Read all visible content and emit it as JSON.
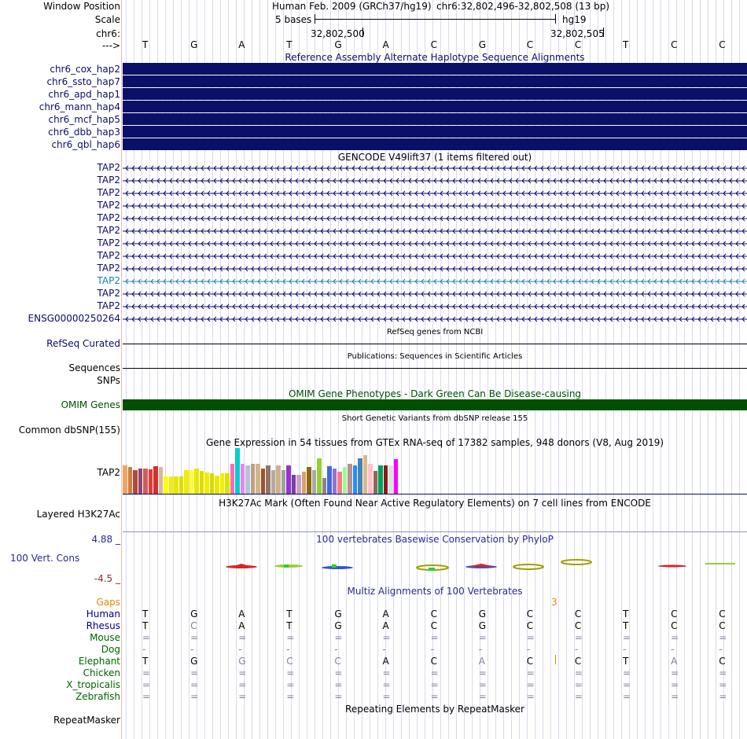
{
  "header": {
    "window_position_label": "Window Position",
    "scale_label": "Scale",
    "chrom_label": "chr6:",
    "arrow_label": "--->",
    "assembly": "Human Feb. 2009 (GRCh37/hg19)",
    "position": "chr6:32,802,496-32,802,508 (13 bp)",
    "scale_text": "5 bases",
    "db": "hg19",
    "tick1": "32,802,500",
    "tick2": "32,802,505"
  },
  "bases": [
    "T",
    "G",
    "A",
    "T",
    "G",
    "A",
    "C",
    "G",
    "C",
    "C",
    "T",
    "C",
    "C"
  ],
  "alt_haplotypes": {
    "title": "Reference Assembly Alternate Haplotype Sequence Alignments",
    "color": "#0a1068",
    "items": [
      "chr6_cox_hap2",
      "chr6_ssto_hap7",
      "chr6_apd_hap1",
      "chr6_mann_hap4",
      "chr6_mcf_hap5",
      "chr6_dbb_hap3",
      "chr6_qbl_hap6"
    ]
  },
  "gencode": {
    "title": "GENCODE V49lift37 (1 items filtered out)",
    "color": "#0b0b6e",
    "highlight_color": "#1d7fb8",
    "items": [
      {
        "label": "TAP2",
        "highlight": false
      },
      {
        "label": "TAP2",
        "highlight": false
      },
      {
        "label": "TAP2",
        "highlight": false
      },
      {
        "label": "TAP2",
        "highlight": false
      },
      {
        "label": "TAP2",
        "highlight": false
      },
      {
        "label": "TAP2",
        "highlight": false
      },
      {
        "label": "TAP2",
        "highlight": false
      },
      {
        "label": "TAP2",
        "highlight": false
      },
      {
        "label": "TAP2",
        "highlight": false
      },
      {
        "label": "TAP2",
        "highlight": true
      },
      {
        "label": "TAP2",
        "highlight": false
      },
      {
        "label": "TAP2",
        "highlight": false
      },
      {
        "label": "ENSG00000250264",
        "highlight": false
      }
    ]
  },
  "refseq": {
    "label": "RefSeq Curated",
    "title": "RefSeq genes from NCBI"
  },
  "pubs": {
    "label": "Sequences",
    "title": "Publications: Sequences in Scientific Articles"
  },
  "snps_label": "SNPs",
  "omim": {
    "title": "OMIM Gene Phenotypes - Dark Green Can Be Disease-causing",
    "label": "OMIM Genes",
    "color": "#005000"
  },
  "dbsnp": {
    "title": "Short Genetic Variants from dbSNP release 155",
    "label": "Common dbSNP(155)"
  },
  "gtex": {
    "title": "Gene Expression in 54 tissues from GTEx RNA-seq of 17382 samples, 948 donors (V8, Aug 2019)",
    "label": "TAP2",
    "values": [
      0.62,
      0.58,
      0.52,
      0.55,
      0.55,
      0.53,
      0.6,
      0.58,
      0.38,
      0.38,
      0.38,
      0.38,
      0.52,
      0.52,
      0.55,
      0.5,
      0.47,
      0.45,
      0.4,
      0.45,
      0.45,
      0.65,
      1.0,
      0.65,
      0.62,
      0.65,
      0.65,
      0.56,
      0.62,
      0.52,
      0.62,
      0.52,
      0.62,
      0.42,
      0.42,
      0.48,
      0.58,
      0.52,
      0.78,
      0.35,
      0.6,
      0.55,
      0.48,
      0.58,
      0.65,
      0.62,
      0.78,
      0.85,
      0.66,
      0.5,
      0.62,
      0.62,
      0.62,
      0.75
    ],
    "colors": [
      "#f4a460",
      "#cd7f3f",
      "#b5473c",
      "#8b4a6b",
      "#cd5c5c",
      "#e53935",
      "#d32f2f",
      "#d7b899",
      "#ffff00",
      "#eeee00",
      "#e6e600",
      "#dddd00",
      "#eeee00",
      "#ffff33",
      "#e6e600",
      "#dddd00",
      "#eeee00",
      "#d9d900",
      "#e8e800",
      "#f0f000",
      "#e0e000",
      "#ff69b4",
      "#00ced1",
      "#ee82ee",
      "#b0c4de",
      "#c0a080",
      "#d2b48c",
      "#a0522d",
      "#8b7765",
      "#b8a99a",
      "#cdb38b",
      "#a0a0a0",
      "#9932cc",
      "#7b3f9d",
      "#c8a2c8",
      "#d4a373",
      "#8b6914",
      "#a9a9a9",
      "#9acd32",
      "#8b8682",
      "#4169e1",
      "#9370db",
      "#f08080",
      "#98fb98",
      "#bc8f8f",
      "#1e90ff",
      "#4682b4",
      "#deb887",
      "#ffc0cb",
      "#8b6c4e",
      "#00a060",
      "#8b1a1a",
      "#e0e0e0",
      "#ff00ff"
    ]
  },
  "h3k27ac": {
    "title": "H3K27Ac Mark (Often Found Near Active Regulatory Elements) on 7 cell lines from ENCODE",
    "label": "Layered H3K27Ac"
  },
  "phylop": {
    "title": "100 vertebrates Basewise Conservation by PhyloP",
    "label": "100 Vert. Cons",
    "max": "4.88 _",
    "min": "-4.5 _"
  },
  "multiz": {
    "title": "Multiz Alignments of 100 Vertebrates",
    "gaps_label": "Gaps",
    "gaps_value": "3",
    "species": [
      {
        "name": "Human",
        "color": "#000080",
        "bases": [
          "T",
          "G",
          "A",
          "T",
          "G",
          "A",
          "C",
          "G",
          "C",
          "C",
          "T",
          "C",
          "C"
        ]
      },
      {
        "name": "Rhesus",
        "color": "#000080",
        "bases": [
          "T",
          "C",
          "A",
          "T",
          "G",
          "A",
          "C",
          "G",
          "C",
          "C",
          "T",
          "C",
          "C"
        ]
      },
      {
        "name": "Mouse",
        "color": "#006400",
        "bases": [
          "=",
          "=",
          "=",
          "=",
          "=",
          "=",
          "=",
          "=",
          "=",
          "=",
          "=",
          "=",
          "="
        ]
      },
      {
        "name": "Dog",
        "color": "#006400",
        "bases": [
          "-",
          "-",
          "-",
          "-",
          "-",
          "-",
          "-",
          "-",
          "-",
          "-",
          "-",
          "-",
          "-"
        ]
      },
      {
        "name": "Elephant",
        "color": "#006400",
        "bases": [
          "T",
          "G",
          "G",
          "C",
          "C",
          "A",
          "C",
          "A",
          "C",
          "C",
          "T",
          "A",
          "C"
        ]
      },
      {
        "name": "Chicken",
        "color": "#006400",
        "bases": [
          "=",
          "=",
          "=",
          "=",
          "=",
          "=",
          "=",
          "=",
          "=",
          "=",
          "=",
          "=",
          "="
        ]
      },
      {
        "name": "X_tropicalis",
        "color": "#006400",
        "bases": [
          "=",
          "=",
          "=",
          "=",
          "=",
          "=",
          "=",
          "=",
          "=",
          "=",
          "=",
          "=",
          "="
        ]
      },
      {
        "name": "Zebrafish",
        "color": "#006400",
        "bases": [
          "=",
          "=",
          "=",
          "=",
          "=",
          "=",
          "=",
          "=",
          "=",
          "=",
          "=",
          "=",
          "="
        ]
      }
    ]
  },
  "repeatmasker": {
    "title": "Repeating Elements by RepeatMasker",
    "label": "RepeatMasker"
  }
}
